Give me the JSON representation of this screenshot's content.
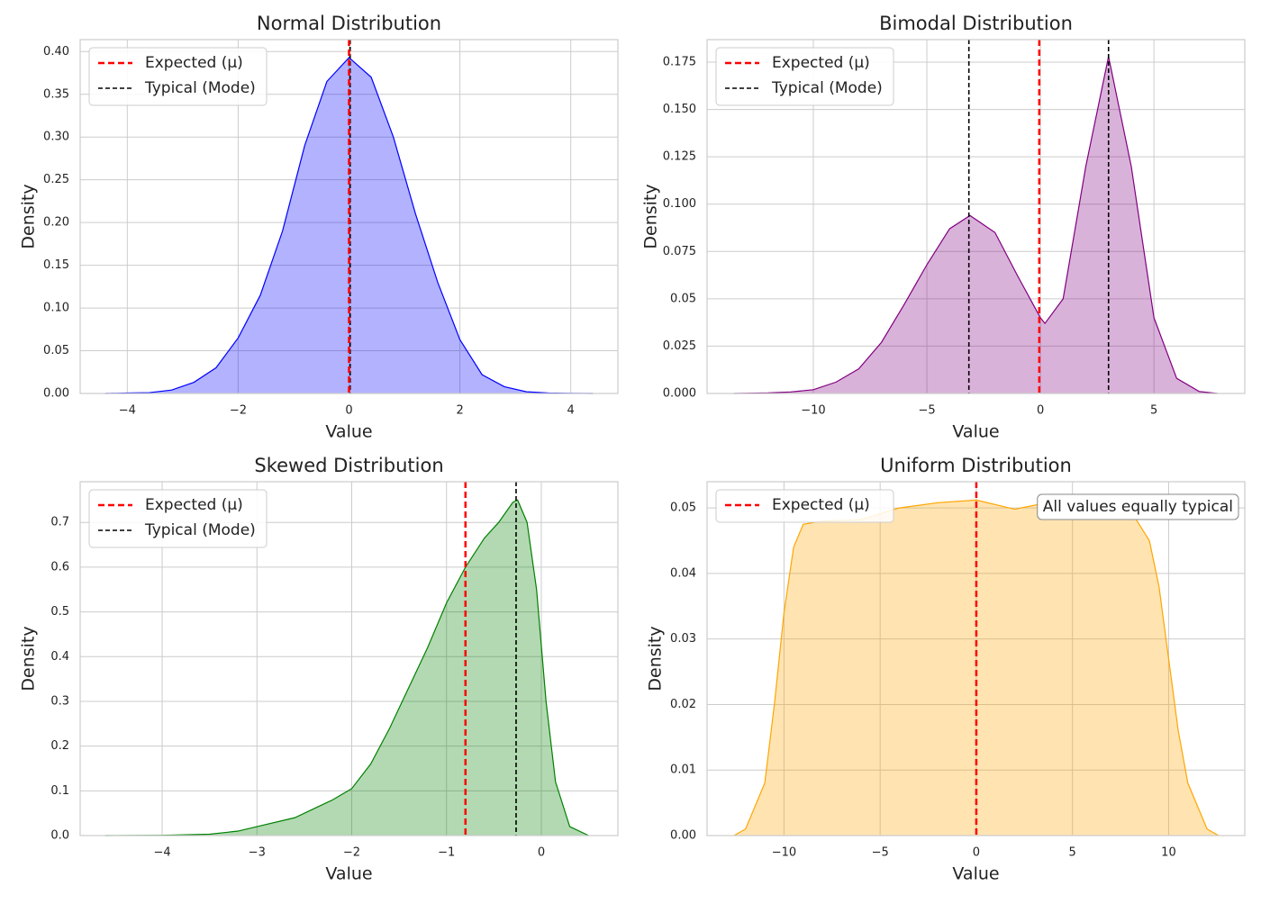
{
  "chart_data": [
    {
      "type": "area",
      "title": "Normal Distribution",
      "xlabel": "Value",
      "ylabel": "Density",
      "color": "blue",
      "legend": "upper left",
      "grid": true,
      "x": [
        -4.4,
        -4,
        -3.6,
        -3.2,
        -2.8,
        -2.4,
        -2,
        -1.6,
        -1.2,
        -0.8,
        -0.4,
        0,
        0.4,
        0.8,
        1.2,
        1.6,
        2,
        2.4,
        2.8,
        3.2,
        3.6,
        4,
        4.4
      ],
      "values": [
        0,
        0.0005,
        0.001,
        0.004,
        0.013,
        0.03,
        0.065,
        0.115,
        0.19,
        0.29,
        0.365,
        0.393,
        0.37,
        0.3,
        0.21,
        0.13,
        0.063,
        0.022,
        0.008,
        0.002,
        0.0005,
        0.0002,
        0
      ],
      "vlines": [
        {
          "name": "Expected (μ)",
          "color": "red",
          "x": [
            0.0
          ]
        },
        {
          "name": "Typical (Mode)",
          "color": "black",
          "x": [
            0.02
          ]
        }
      ],
      "xlim": [
        -4.85,
        4.85
      ],
      "ylim": [
        0,
        0.414
      ],
      "xticks": [
        {
          "value": -4,
          "label": "−4"
        },
        {
          "value": -2,
          "label": "−2"
        },
        0,
        2,
        4
      ],
      "yticks": [
        {
          "value": 0,
          "label": "0.00"
        },
        {
          "value": 0.05,
          "label": "0.05"
        },
        {
          "value": 0.1,
          "label": "0.10"
        },
        {
          "value": 0.15,
          "label": "0.15"
        },
        {
          "value": 0.2,
          "label": "0.20"
        },
        {
          "value": 0.25,
          "label": "0.25"
        },
        {
          "value": 0.3,
          "label": "0.30"
        },
        {
          "value": 0.35,
          "label": "0.35"
        },
        {
          "value": 0.4,
          "label": "0.40"
        }
      ]
    },
    {
      "type": "area",
      "title": "Bimodal Distribution",
      "xlabel": "Value",
      "ylabel": "Density",
      "color": "purple",
      "legend": "upper left",
      "grid": true,
      "x": [
        -13.5,
        -12,
        -11,
        -10,
        -9,
        -8,
        -7,
        -6,
        -5,
        -4,
        -3.1,
        -2,
        -1,
        0,
        0.2,
        1,
        2,
        3,
        4,
        5,
        6,
        7,
        7.8
      ],
      "values": [
        0,
        0.0003,
        0.0008,
        0.002,
        0.006,
        0.013,
        0.027,
        0.047,
        0.068,
        0.087,
        0.094,
        0.085,
        0.062,
        0.04,
        0.037,
        0.05,
        0.12,
        0.178,
        0.12,
        0.04,
        0.008,
        0.001,
        0
      ],
      "vlines": [
        {
          "name": "Expected (μ)",
          "color": "red",
          "x": [
            -0.05
          ]
        },
        {
          "name": "Typical (Mode)",
          "color": "black",
          "x": [
            -3.15,
            3.0
          ]
        }
      ],
      "xlim": [
        -14.68,
        9.0
      ],
      "ylim": [
        0,
        0.1869
      ],
      "xticks": [
        {
          "value": -10,
          "label": "−10"
        },
        {
          "value": -5,
          "label": "−5"
        },
        0,
        5
      ],
      "yticks": [
        {
          "value": 0,
          "label": "0.000"
        },
        0.025,
        0.05,
        0.075,
        {
          "value": 0.1,
          "label": "0.100"
        },
        0.125,
        {
          "value": 0.15,
          "label": "0.150"
        },
        0.175
      ]
    },
    {
      "type": "area",
      "title": "Skewed Distribution",
      "xlabel": "Value",
      "ylabel": "Density",
      "color": "green",
      "legend": "upper left",
      "grid": true,
      "x": [
        -4.6,
        -4,
        -3.5,
        -3.2,
        -3,
        -2.6,
        -2.4,
        -2.2,
        -2,
        -1.8,
        -1.6,
        -1.4,
        -1.2,
        -1,
        -0.8,
        -0.6,
        -0.45,
        -0.3,
        -0.25,
        -0.15,
        -0.05,
        0.05,
        0.15,
        0.3,
        0.5
      ],
      "values": [
        0,
        0.0005,
        0.003,
        0.01,
        0.02,
        0.04,
        0.06,
        0.08,
        0.105,
        0.16,
        0.24,
        0.33,
        0.42,
        0.52,
        0.6,
        0.665,
        0.7,
        0.745,
        0.75,
        0.7,
        0.55,
        0.3,
        0.12,
        0.02,
        0
      ],
      "vlines": [
        {
          "name": "Expected (μ)",
          "color": "red",
          "x": [
            -0.8
          ]
        },
        {
          "name": "Typical (Mode)",
          "color": "black",
          "x": [
            -0.266
          ]
        }
      ],
      "xlim": [
        -4.865,
        0.808
      ],
      "ylim": [
        0,
        0.791
      ],
      "xticks": [
        {
          "value": -4,
          "label": "−4"
        },
        {
          "value": -3,
          "label": "−3"
        },
        {
          "value": -2,
          "label": "−2"
        },
        {
          "value": -1,
          "label": "−1"
        },
        0
      ],
      "yticks": [
        {
          "value": 0,
          "label": "0.0"
        },
        0.1,
        0.2,
        0.3,
        0.4,
        0.5,
        0.6,
        0.7
      ]
    },
    {
      "type": "area",
      "title": "Uniform Distribution",
      "xlabel": "Value",
      "ylabel": "Density",
      "color": "orange",
      "legend": "upper left",
      "grid": true,
      "annotation": "All values equally typical",
      "x": [
        -12.6,
        -12,
        -11,
        -10.5,
        -10,
        -9.5,
        -9,
        -8,
        -6,
        -4,
        -2,
        0,
        2,
        4,
        6,
        8,
        9,
        9.5,
        10,
        10.5,
        11,
        12,
        12.6
      ],
      "values": [
        0,
        0.001,
        0.008,
        0.02,
        0.034,
        0.044,
        0.0475,
        0.048,
        0.0482,
        0.05,
        0.0508,
        0.0512,
        0.0498,
        0.051,
        0.0508,
        0.0497,
        0.045,
        0.038,
        0.027,
        0.016,
        0.008,
        0.001,
        0
      ],
      "vlines": [
        {
          "name": "Expected (μ)",
          "color": "red",
          "x": [
            0.0
          ]
        }
      ],
      "xlim": [
        -14.0,
        13.96
      ],
      "ylim": [
        0,
        0.054
      ],
      "xticks": [
        {
          "value": -10,
          "label": "−10"
        },
        {
          "value": -5,
          "label": "−5"
        },
        0,
        5,
        10
      ],
      "yticks": [
        {
          "value": 0,
          "label": "0.00"
        },
        0.01,
        0.02,
        0.03,
        0.04,
        0.05
      ]
    }
  ]
}
